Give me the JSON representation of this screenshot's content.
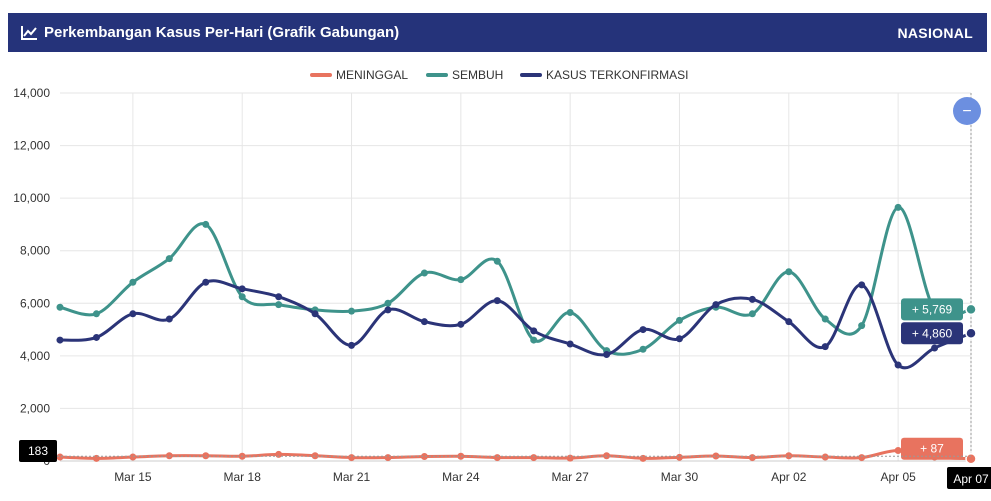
{
  "header": {
    "title": "Perkembangan Kasus Per-Hari (Grafik Gabungan)",
    "scope": "NASIONAL",
    "icon": "chart-line-icon"
  },
  "colors": {
    "meninggal": "#e8735f",
    "sembuh": "#3e938b",
    "terkonfirmasi": "#2b3478",
    "header": "#25337a",
    "zoom_button": "#6c8fe0"
  },
  "zoom_button_label": "−",
  "chart_data": {
    "type": "line",
    "x": [
      "Mar 13",
      "Mar 14",
      "Mar 15",
      "Mar 16",
      "Mar 17",
      "Mar 18",
      "Mar 19",
      "Mar 20",
      "Mar 21",
      "Mar 22",
      "Mar 23",
      "Mar 24",
      "Mar 25",
      "Mar 26",
      "Mar 27",
      "Mar 28",
      "Mar 29",
      "Mar 30",
      "Mar 31",
      "Apr 01",
      "Apr 02",
      "Apr 03",
      "Apr 04",
      "Apr 05",
      "Apr 06",
      "Apr 07"
    ],
    "x_tick_labels": [
      "Mar 15",
      "Mar 18",
      "Mar 21",
      "Mar 24",
      "Mar 27",
      "Mar 30",
      "Apr 02",
      "Apr 05",
      "Apr 07"
    ],
    "ylim": [
      0,
      14000
    ],
    "y_ticks": [
      "0",
      "2,000",
      "4,000",
      "6,000",
      "8,000",
      "10,000",
      "12,000",
      "14,000"
    ],
    "grid": true,
    "legend_position": "top-center",
    "series": [
      {
        "name": "MENINGGAL",
        "color": "#e8735f",
        "values": [
          150,
          100,
          150,
          200,
          200,
          180,
          250,
          200,
          130,
          130,
          170,
          180,
          130,
          130,
          110,
          200,
          100,
          140,
          190,
          130,
          200,
          150,
          130,
          400,
          150,
          87
        ]
      },
      {
        "name": "SEMBUH",
        "color": "#3e938b",
        "values": [
          5850,
          5600,
          6800,
          7700,
          9000,
          6250,
          5950,
          5750,
          5700,
          6000,
          7150,
          6900,
          7600,
          4600,
          5650,
          4200,
          4250,
          5350,
          5850,
          5600,
          7200,
          5400,
          5150,
          9650,
          5750,
          5769
        ]
      },
      {
        "name": "KASUS TERKONFIRMASI",
        "color": "#2b3478",
        "values": [
          4600,
          4700,
          5600,
          5400,
          6800,
          6550,
          6250,
          5600,
          4400,
          5750,
          5300,
          5200,
          6100,
          4950,
          4450,
          4050,
          5000,
          4650,
          5950,
          6150,
          5300,
          4350,
          6700,
          3650,
          4300,
          4860
        ]
      }
    ],
    "annotations": {
      "crosshair_date": "Apr 07",
      "left_marker_value": "183",
      "sembuh_label": "+ 5,769",
      "terkonfirmasi_label": "+ 4,860",
      "meninggal_label": "+ 87"
    }
  }
}
